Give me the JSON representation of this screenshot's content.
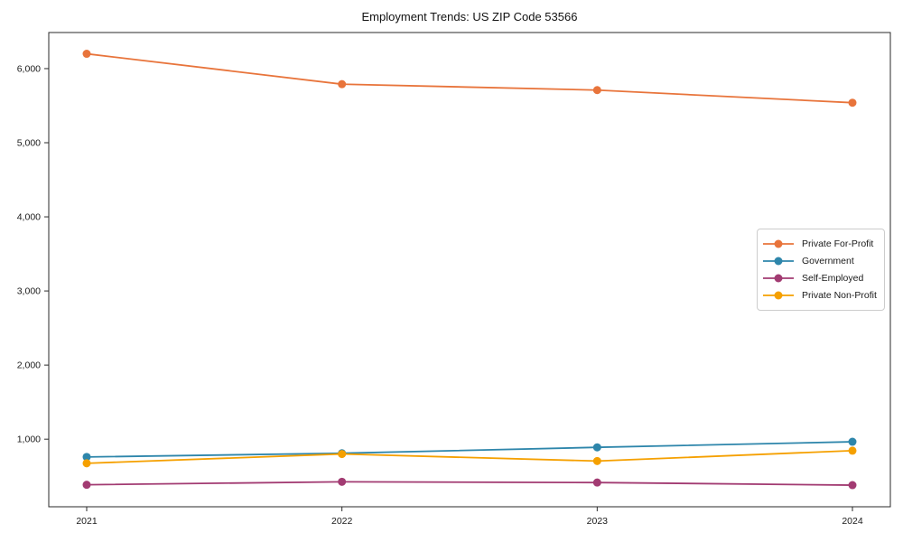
{
  "chart_data": {
    "type": "line",
    "title": "Employment Trends: US ZIP Code 53566",
    "xlabel": "",
    "ylabel": "",
    "x_labels": [
      "2021",
      "2022",
      "2023",
      "2024"
    ],
    "y_tick_values": [
      1000,
      2000,
      3000,
      4000,
      5000,
      6000
    ],
    "y_tick_labels": [
      "1,000",
      "2,000",
      "3,000",
      "4,000",
      "5,000",
      "6,000"
    ],
    "ylim": [
      88,
      6487
    ],
    "grid": false,
    "legend_position": "center-right",
    "marker": "circle",
    "axis_color": "#2a2a2a",
    "series": [
      {
        "name": "Private For-Profit",
        "color": "#E8743B",
        "values": [
          6200,
          5790,
          5710,
          5540
        ]
      },
      {
        "name": "Government",
        "color": "#2E86AB",
        "values": [
          760,
          810,
          890,
          965
        ]
      },
      {
        "name": "Self-Employed",
        "color": "#A23B72",
        "values": [
          385,
          425,
          415,
          380
        ]
      },
      {
        "name": "Private Non-Profit",
        "color": "#F5A000",
        "values": [
          675,
          800,
          705,
          845
        ]
      }
    ]
  }
}
